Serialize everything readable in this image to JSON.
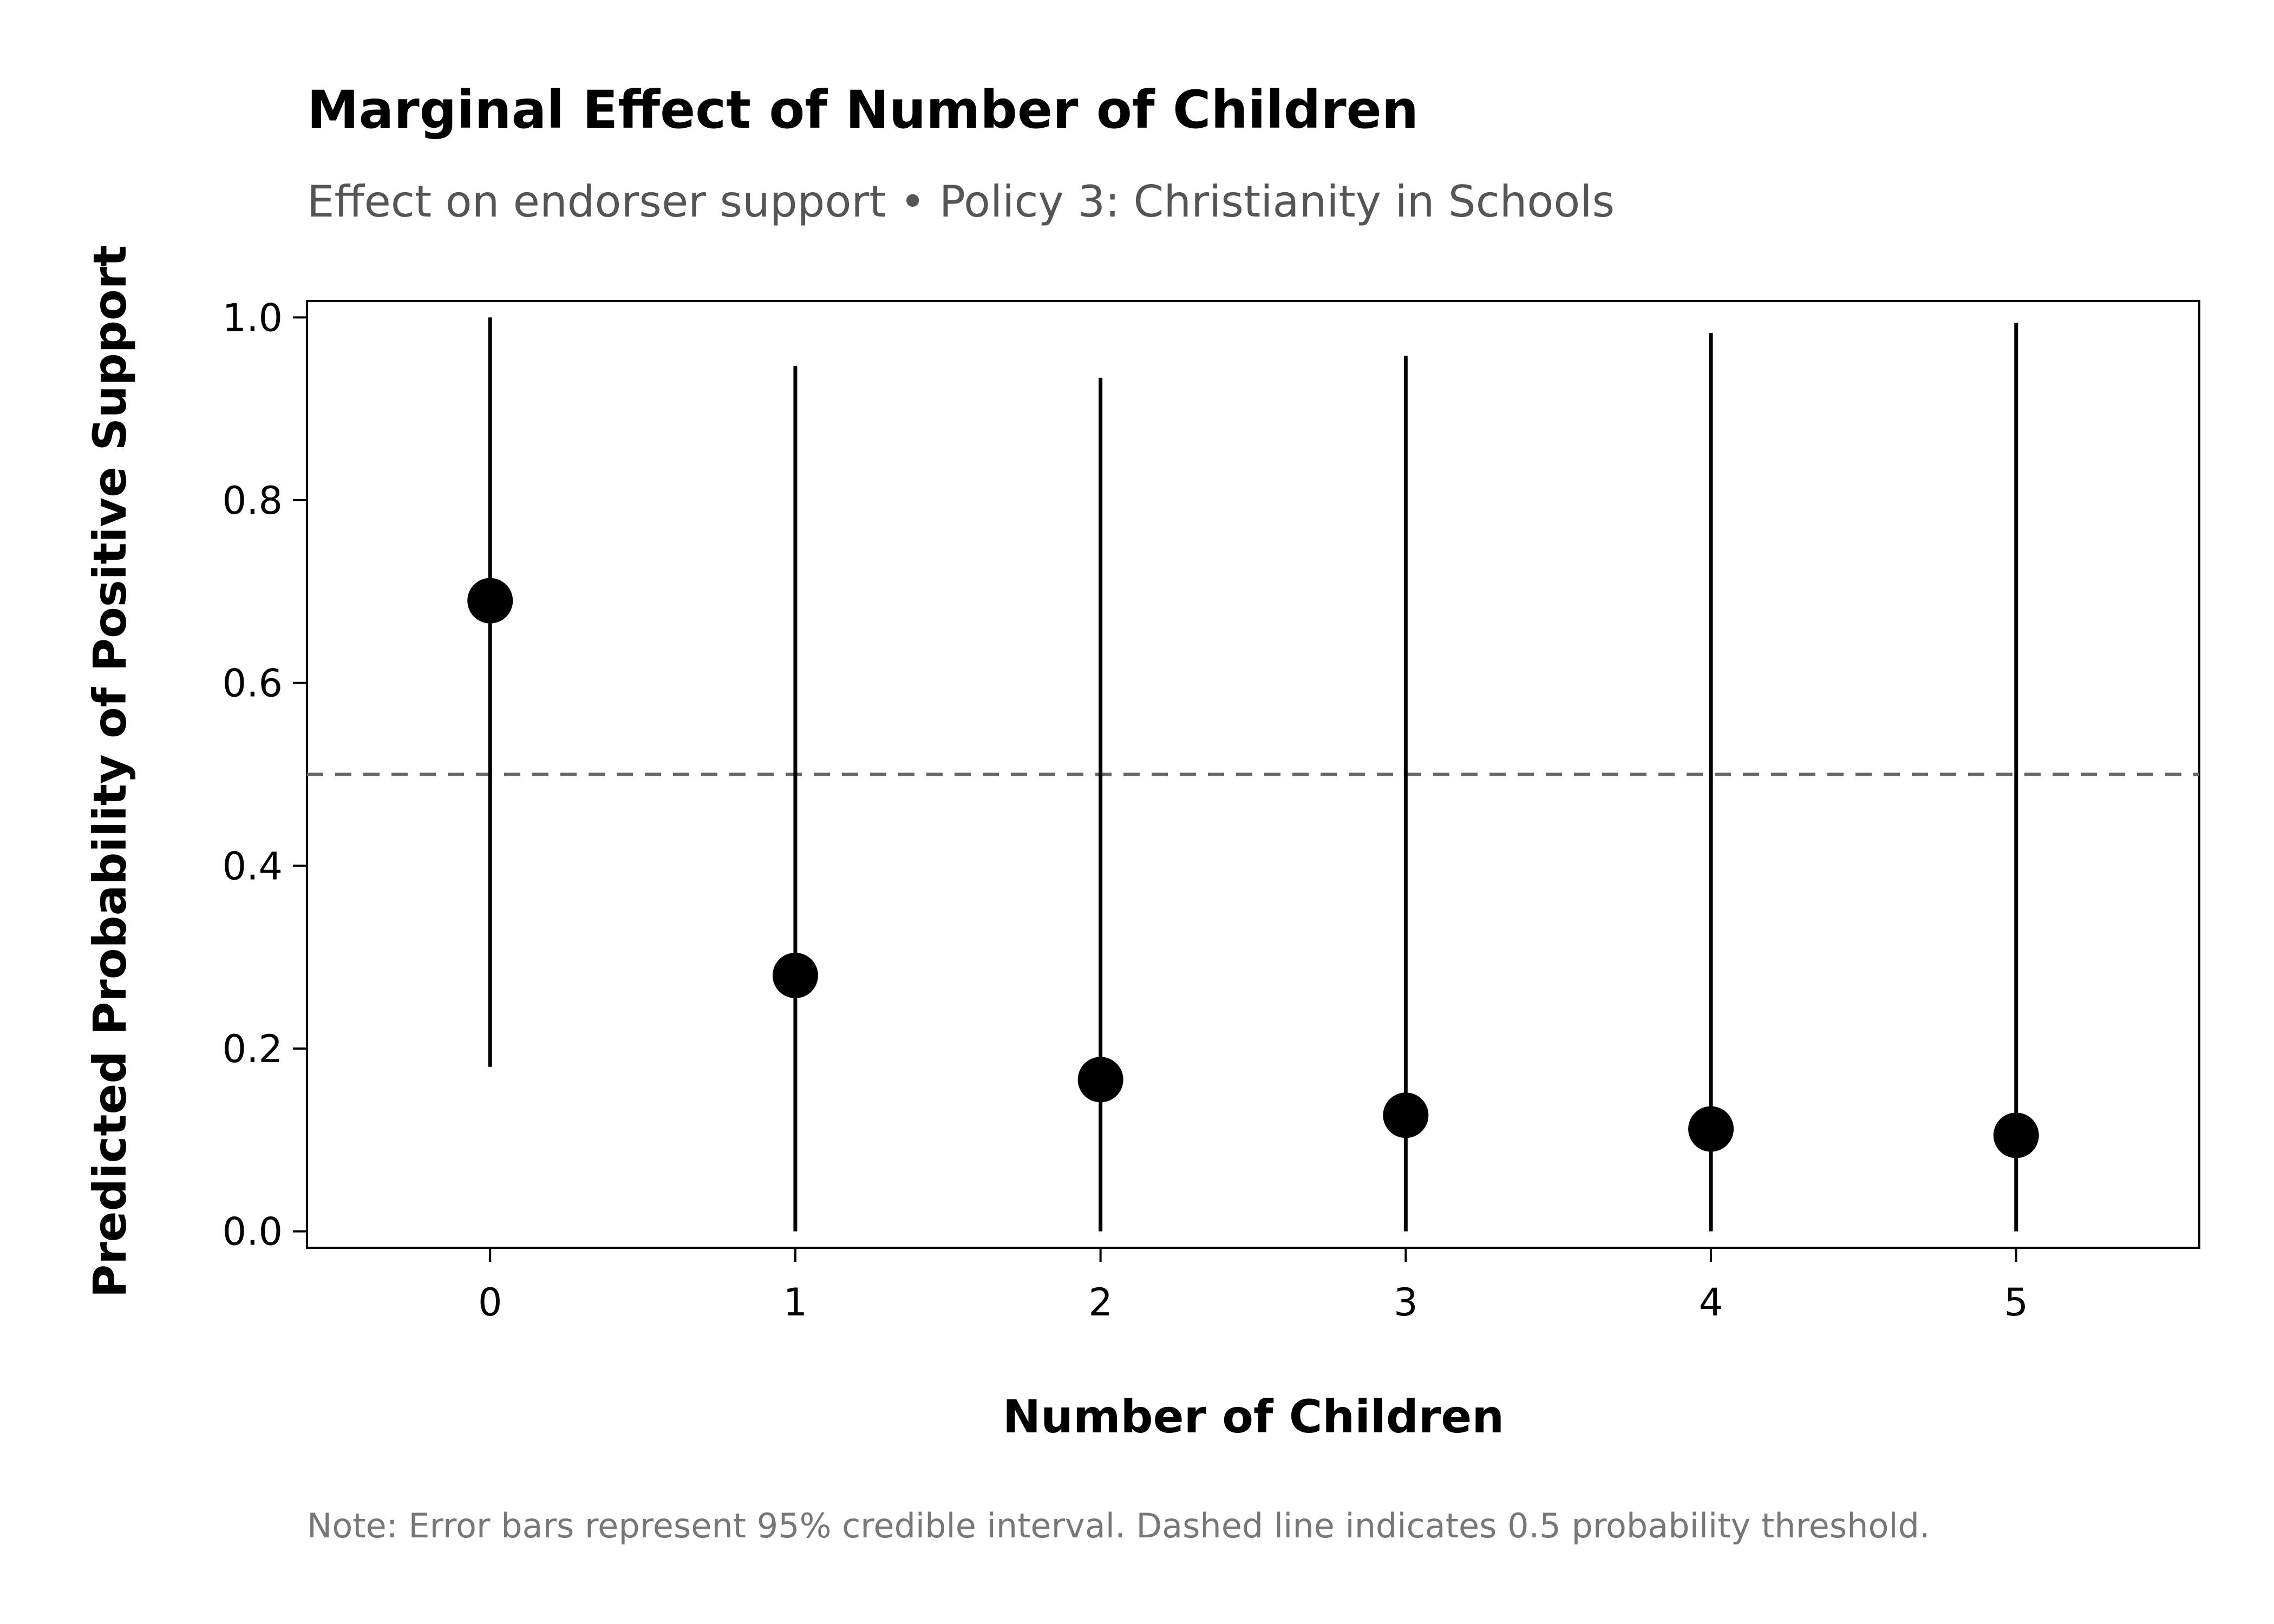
{
  "chart_data": {
    "type": "scatter",
    "title": "Marginal Effect of Number of Children",
    "subtitle": "Effect on endorser support • Policy 3: Christianity in Schools",
    "xlabel": "Number of Children",
    "ylabel": "Predicted Probability of Positive Support",
    "note": "Note: Error bars represent 95% credible interval. Dashed line indicates 0.5 probability threshold.",
    "xlim": [
      -0.6,
      5.6
    ],
    "ylim": [
      -0.018,
      1.018
    ],
    "x_ticks": [
      "0",
      "1",
      "2",
      "3",
      "4",
      "5"
    ],
    "y_ticks": [
      "0.0",
      "0.2",
      "0.4",
      "0.6",
      "0.8",
      "1.0"
    ],
    "grid": false,
    "reference_line": {
      "y": 0.5,
      "style": "dashed",
      "color": "#666666"
    },
    "series": [
      {
        "x": [
          0,
          1,
          2,
          3,
          4,
          5
        ],
        "y": [
          0.69,
          0.28,
          0.166,
          0.127,
          0.112,
          0.105
        ],
        "lower": [
          0.18,
          0.0,
          0.0,
          0.0,
          0.0,
          0.0
        ],
        "upper": [
          1.0,
          0.947,
          0.934,
          0.958,
          0.983,
          0.994
        ]
      }
    ],
    "colors": {
      "points": "#000000",
      "error_bars": "#000000",
      "frame": "#000000"
    }
  }
}
